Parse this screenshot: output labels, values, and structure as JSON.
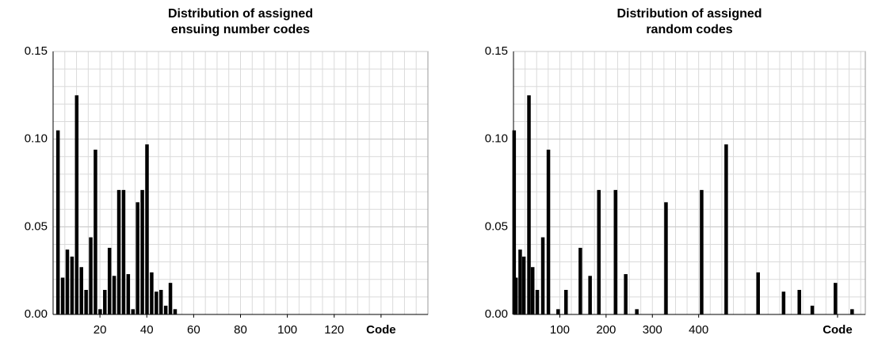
{
  "chart_data": [
    {
      "type": "bar",
      "title": [
        "Distribution of assigned",
        "ensuing number codes"
      ],
      "x": [
        2,
        4,
        6,
        8,
        10,
        12,
        14,
        16,
        18,
        20,
        22,
        24,
        26,
        28,
        30,
        32,
        34,
        36,
        38,
        40,
        42,
        44,
        46,
        48,
        50,
        52
      ],
      "values": [
        0.105,
        0.021,
        0.037,
        0.033,
        0.125,
        0.027,
        0.014,
        0.044,
        0.094,
        0.003,
        0.014,
        0.038,
        0.022,
        0.071,
        0.071,
        0.023,
        0.003,
        0.064,
        0.071,
        0.097,
        0.024,
        0.013,
        0.014,
        0.005,
        0.018,
        0.003
      ],
      "color": "#000000",
      "xlim": [
        0,
        160
      ],
      "xticks": [
        20,
        40,
        60,
        80,
        100,
        120,
        {
          "value": 140,
          "label": "Code"
        }
      ],
      "ylim": [
        0,
        0.15
      ],
      "yticks": [
        {
          "value": 0,
          "label": "0.00"
        },
        {
          "value": 0.05,
          "label": "0.05"
        },
        {
          "value": 0.1,
          "label": "0.10"
        },
        {
          "value": 0.15,
          "label": "0.15"
        }
      ],
      "grid": true
    },
    {
      "type": "bar",
      "title": [
        "Distribution of assigned",
        "random codes"
      ],
      "x": [
        1,
        5,
        14,
        22,
        33,
        41,
        51,
        63,
        75,
        96,
        113,
        144,
        165,
        184,
        220,
        242,
        266,
        329,
        406,
        459,
        528,
        583,
        617,
        645,
        695,
        731
      ],
      "values": [
        0.105,
        0.021,
        0.037,
        0.033,
        0.125,
        0.027,
        0.014,
        0.044,
        0.094,
        0.003,
        0.014,
        0.038,
        0.022,
        0.071,
        0.071,
        0.023,
        0.003,
        0.064,
        0.071,
        0.097,
        0.024,
        0.013,
        0.014,
        0.005,
        0.018,
        0.003
      ],
      "color": "#000000",
      "xlim": [
        0,
        760
      ],
      "xticks": [
        100,
        200,
        300,
        400,
        {
          "value": 700,
          "label": "Code"
        }
      ],
      "ylim": [
        0,
        0.15
      ],
      "yticks": [
        {
          "value": 0,
          "label": "0.00"
        },
        {
          "value": 0.05,
          "label": "0.05"
        },
        {
          "value": 0.1,
          "label": "0.10"
        },
        {
          "value": 0.15,
          "label": "0.15"
        }
      ],
      "grid": true
    }
  ]
}
